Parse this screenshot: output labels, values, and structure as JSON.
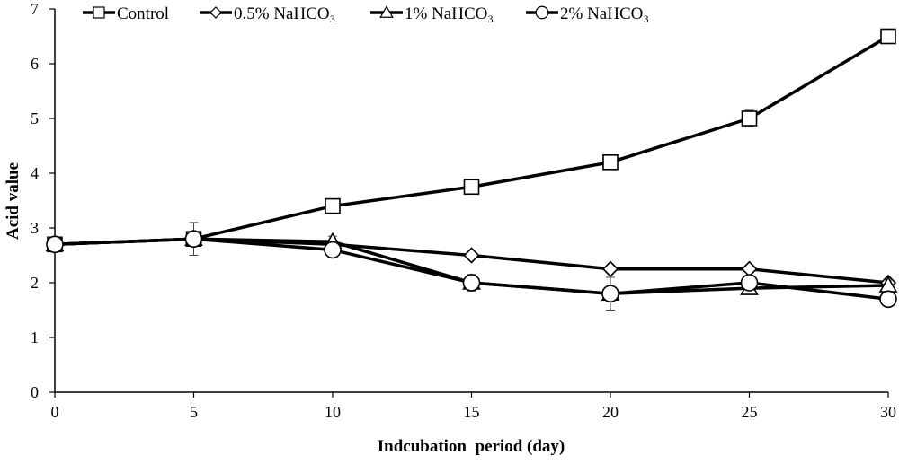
{
  "chart_data": {
    "type": "line",
    "xlabel": "Indcubation  period (day)",
    "ylabel": "Acid value",
    "x": [
      0,
      5,
      10,
      15,
      20,
      25,
      30
    ],
    "xlim": [
      0,
      30
    ],
    "ylim": [
      0,
      7
    ],
    "xticks": [
      "0",
      "5",
      "10",
      "15",
      "20",
      "25",
      "30"
    ],
    "yticks": [
      "0",
      "1",
      "2",
      "3",
      "4",
      "5",
      "6",
      "7"
    ],
    "grid": false,
    "legend_position": "top",
    "series": [
      {
        "name": "Control",
        "marker": "square",
        "values": [
          2.7,
          2.8,
          3.4,
          3.75,
          4.2,
          5.0,
          6.5
        ],
        "yerr": [
          0.05,
          0.3,
          0.05,
          0.05,
          0.05,
          0.15,
          0.05
        ]
      },
      {
        "name": "0.5% NaHCO₃",
        "marker": "diamond",
        "values": [
          2.7,
          2.8,
          2.7,
          2.5,
          2.25,
          2.25,
          2.0
        ],
        "yerr": [
          0.05,
          0.1,
          0.05,
          0.05,
          0.05,
          0.05,
          0.05
        ]
      },
      {
        "name": "1% NaHCO₃",
        "marker": "triangle",
        "values": [
          2.7,
          2.8,
          2.75,
          2.0,
          1.8,
          1.9,
          1.95
        ],
        "yerr": [
          0.05,
          0.1,
          0.1,
          0.15,
          0.1,
          0.1,
          0.1
        ]
      },
      {
        "name": "2% NaHCO₃",
        "marker": "circle",
        "values": [
          2.7,
          2.8,
          2.6,
          2.0,
          1.8,
          2.0,
          1.7
        ],
        "yerr": [
          0.05,
          0.1,
          0.05,
          0.15,
          0.3,
          0.1,
          0.05
        ]
      }
    ],
    "colors": {
      "line": "#000000",
      "marker_fill": "#ffffff"
    }
  }
}
